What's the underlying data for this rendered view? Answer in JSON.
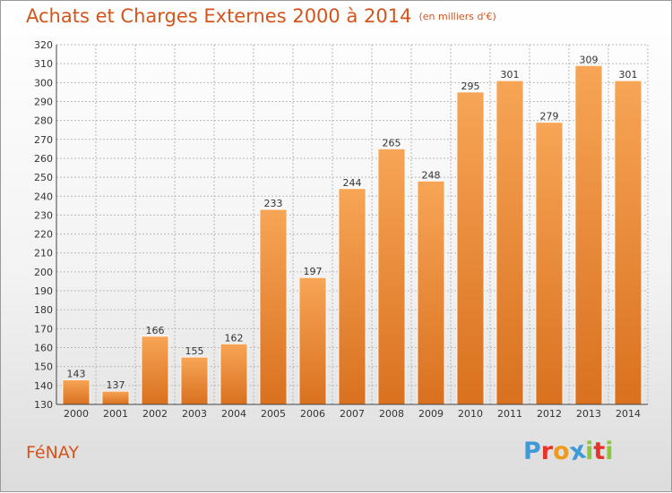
{
  "header": {
    "title": "Achats et Charges Externes 2000 à 2014",
    "unit": "(en milliers d'€)"
  },
  "footer": {
    "commune": "FéNAY",
    "logo_text": "Proxiti",
    "logo_letters": [
      {
        "ch": "P",
        "color": "#3c9ad6"
      },
      {
        "ch": "r",
        "color": "#e7342a"
      },
      {
        "ch": "o",
        "color": "#f09a1b"
      },
      {
        "ch": "x",
        "color": "#3c9ad6"
      },
      {
        "ch": "i",
        "color": "#8cc63e"
      },
      {
        "ch": "t",
        "color": "#e7342a"
      },
      {
        "ch": "i",
        "color": "#8cc63e"
      }
    ]
  },
  "colors": {
    "title": "#d4541c",
    "bar_light": "#f7a556",
    "bar_dark": "#d9711f",
    "grid": "#b9b9b9",
    "text": "#333333"
  },
  "chart_data": {
    "type": "bar",
    "categories": [
      "2000",
      "2001",
      "2002",
      "2003",
      "2004",
      "2005",
      "2006",
      "2007",
      "2008",
      "2009",
      "2010",
      "2011",
      "2012",
      "2013",
      "2014"
    ],
    "values": [
      143,
      137,
      166,
      155,
      162,
      233,
      197,
      244,
      265,
      248,
      295,
      301,
      279,
      309,
      301
    ],
    "ylim": [
      130,
      320
    ],
    "yticks": [
      130,
      140,
      150,
      160,
      170,
      180,
      190,
      200,
      210,
      220,
      230,
      240,
      250,
      260,
      270,
      280,
      290,
      300,
      310,
      320
    ],
    "grid": true,
    "data_labels": true
  }
}
